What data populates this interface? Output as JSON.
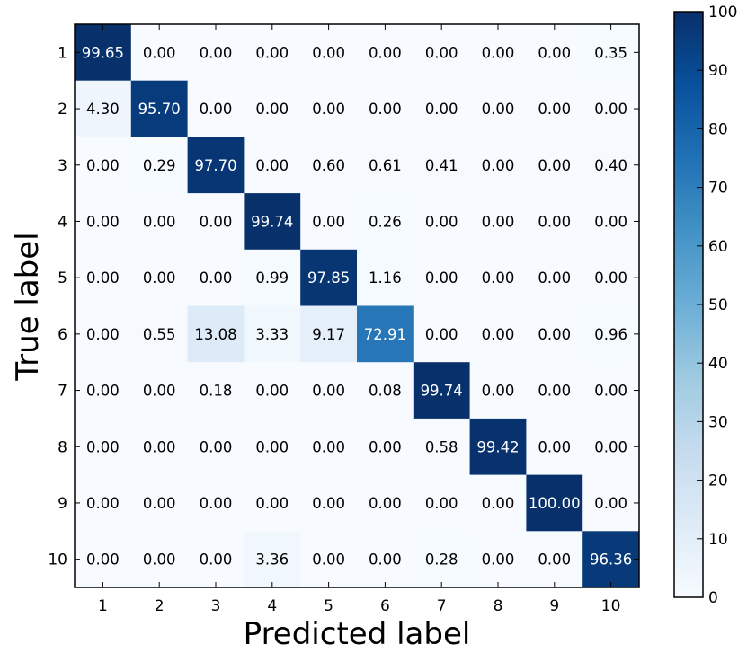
{
  "chart_data": {
    "type": "heatmap",
    "xlabel": "Predicted label",
    "ylabel": "True label",
    "x_categories": [
      "1",
      "2",
      "3",
      "4",
      "5",
      "6",
      "7",
      "8",
      "9",
      "10"
    ],
    "y_categories": [
      "1",
      "2",
      "3",
      "4",
      "5",
      "6",
      "7",
      "8",
      "9",
      "10"
    ],
    "values": [
      [
        99.65,
        0.0,
        0.0,
        0.0,
        0.0,
        0.0,
        0.0,
        0.0,
        0.0,
        0.35
      ],
      [
        4.3,
        95.7,
        0.0,
        0.0,
        0.0,
        0.0,
        0.0,
        0.0,
        0.0,
        0.0
      ],
      [
        0.0,
        0.29,
        97.7,
        0.0,
        0.6,
        0.61,
        0.41,
        0.0,
        0.0,
        0.4
      ],
      [
        0.0,
        0.0,
        0.0,
        99.74,
        0.0,
        0.26,
        0.0,
        0.0,
        0.0,
        0.0
      ],
      [
        0.0,
        0.0,
        0.0,
        0.99,
        97.85,
        1.16,
        0.0,
        0.0,
        0.0,
        0.0
      ],
      [
        0.0,
        0.55,
        13.08,
        3.33,
        9.17,
        72.91,
        0.0,
        0.0,
        0.0,
        0.96
      ],
      [
        0.0,
        0.0,
        0.18,
        0.0,
        0.0,
        0.08,
        99.74,
        0.0,
        0.0,
        0.0
      ],
      [
        0.0,
        0.0,
        0.0,
        0.0,
        0.0,
        0.0,
        0.58,
        99.42,
        0.0,
        0.0
      ],
      [
        0.0,
        0.0,
        0.0,
        0.0,
        0.0,
        0.0,
        0.0,
        0.0,
        100.0,
        0.0
      ],
      [
        0.0,
        0.0,
        0.0,
        3.36,
        0.0,
        0.0,
        0.28,
        0.0,
        0.0,
        96.36
      ]
    ],
    "value_format": "2 decimals",
    "colormap": "Blues",
    "colorbar": {
      "range": [
        0,
        100
      ],
      "ticks": [
        "0",
        "10",
        "20",
        "30",
        "40",
        "50",
        "60",
        "70",
        "80",
        "90",
        "100"
      ]
    }
  }
}
